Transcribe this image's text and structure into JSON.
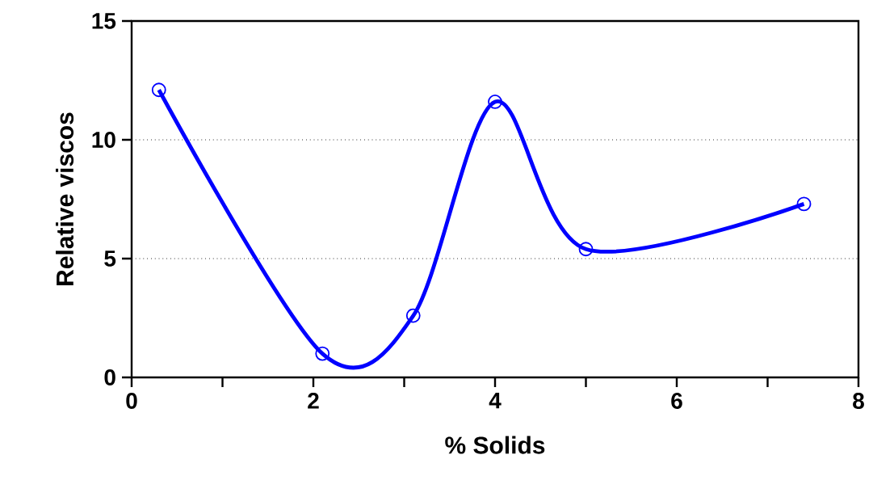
{
  "chart_data": {
    "type": "line",
    "xlabel": "%  Solids",
    "ylabel": "Relative viscos",
    "x": [
      0.3,
      2.1,
      3.1,
      4.0,
      5.0,
      7.4
    ],
    "series": [
      {
        "color": "#0000ff",
        "values": [
          12.1,
          1.0,
          2.6,
          11.6,
          5.4,
          7.3
        ]
      }
    ],
    "xlim": [
      0,
      8
    ],
    "ylim": [
      0,
      15
    ],
    "xticks": [
      0,
      {
        "value": 1,
        "label": null
      },
      2,
      {
        "value": 3,
        "label": null
      },
      4,
      {
        "value": 5,
        "label": null
      },
      6,
      {
        "value": 7,
        "label": null
      },
      8
    ],
    "yticks": [
      0,
      5,
      10,
      15
    ],
    "grid": "y",
    "marker": "circle",
    "line_style": "solid"
  }
}
